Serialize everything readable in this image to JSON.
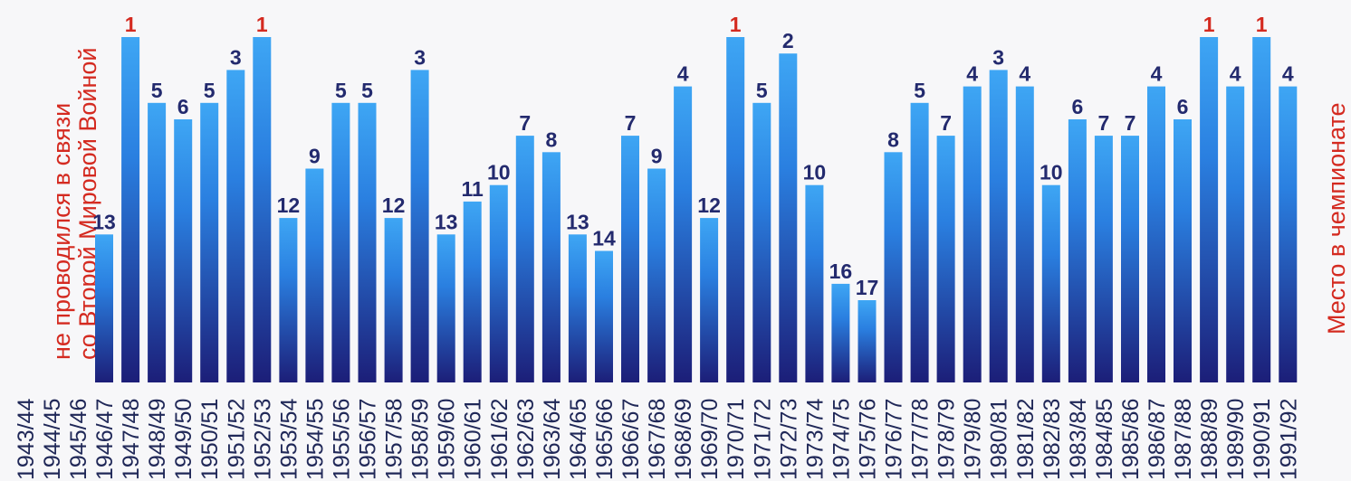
{
  "chart_data": {
    "type": "bar",
    "categories": [
      "1943/44",
      "1944/45",
      "1945/46",
      "1946/47",
      "1947/48",
      "1948/49",
      "1949/50",
      "1950/51",
      "1951/52",
      "1952/53",
      "1953/54",
      "1954/55",
      "1955/56",
      "1956/57",
      "1957/58",
      "1958/59",
      "1959/60",
      "1960/61",
      "1961/62",
      "1962/63",
      "1963/64",
      "1964/65",
      "1965/66",
      "1966/67",
      "1967/68",
      "1968/69",
      "1969/70",
      "1970/71",
      "1971/72",
      "1972/73",
      "1973/74",
      "1974/75",
      "1975/76",
      "1976/77",
      "1977/78",
      "1978/79",
      "1979/80",
      "1980/81",
      "1981/82",
      "1982/83",
      "1983/84",
      "1984/85",
      "1985/86",
      "1986/87",
      "1987/88",
      "1988/89",
      "1989/90",
      "1990/91",
      "1991/92"
    ],
    "values": [
      null,
      null,
      null,
      13,
      1,
      5,
      6,
      5,
      3,
      1,
      12,
      9,
      5,
      5,
      12,
      3,
      13,
      11,
      10,
      7,
      8,
      13,
      14,
      7,
      9,
      4,
      12,
      1,
      5,
      2,
      10,
      16,
      17,
      8,
      5,
      7,
      4,
      3,
      4,
      10,
      6,
      7,
      7,
      4,
      6,
      1,
      4,
      1,
      4
    ],
    "annotations": {
      "gap_note_line1": "не проводился в связи",
      "gap_note_line2": "со Второй Мировой Войной"
    },
    "ylabel": "Место в чемпионате",
    "y_axis_inverted": true,
    "y_scale_reference": {
      "rank_1_top_of_bar": true
    },
    "colors": {
      "bar_top": "#3ea6f4",
      "bar_bottom": "#1c1e78",
      "label_default": "#232a6e",
      "label_first_place": "#d42a20",
      "axis_text": "#202858"
    },
    "grid": false,
    "legend": "none"
  }
}
